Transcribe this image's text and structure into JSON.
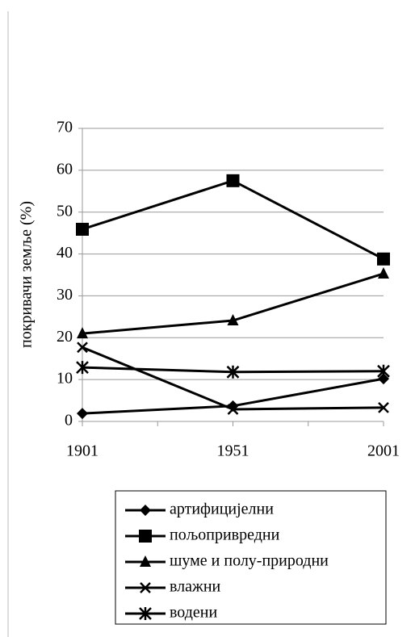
{
  "chart_data": {
    "type": "line",
    "y_label": "покривачи земље (%)",
    "categories": [
      "1901",
      "1951",
      "2001"
    ],
    "series": [
      {
        "name": "артифицијелни",
        "color": "#000000",
        "marker": "diamond",
        "values": [
          1.9,
          3.7,
          10.2
        ]
      },
      {
        "name": "пољопривредни",
        "color": "#000000",
        "marker": "square",
        "values": [
          45.9,
          57.5,
          38.8
        ]
      },
      {
        "name": "шуме и полу-природни",
        "color": "#000000",
        "marker": "triangle",
        "values": [
          21.0,
          24.1,
          35.3
        ]
      },
      {
        "name": "влажни",
        "color": "#000000",
        "marker": "x",
        "values": [
          17.7,
          2.9,
          3.3
        ]
      },
      {
        "name": "водени",
        "color": "#000000",
        "marker": "star",
        "values": [
          12.9,
          11.8,
          12.0
        ]
      }
    ],
    "ylim": [
      0,
      70
    ],
    "yticks": [
      0,
      10,
      20,
      30,
      40,
      50,
      60,
      70
    ],
    "grid": true
  }
}
